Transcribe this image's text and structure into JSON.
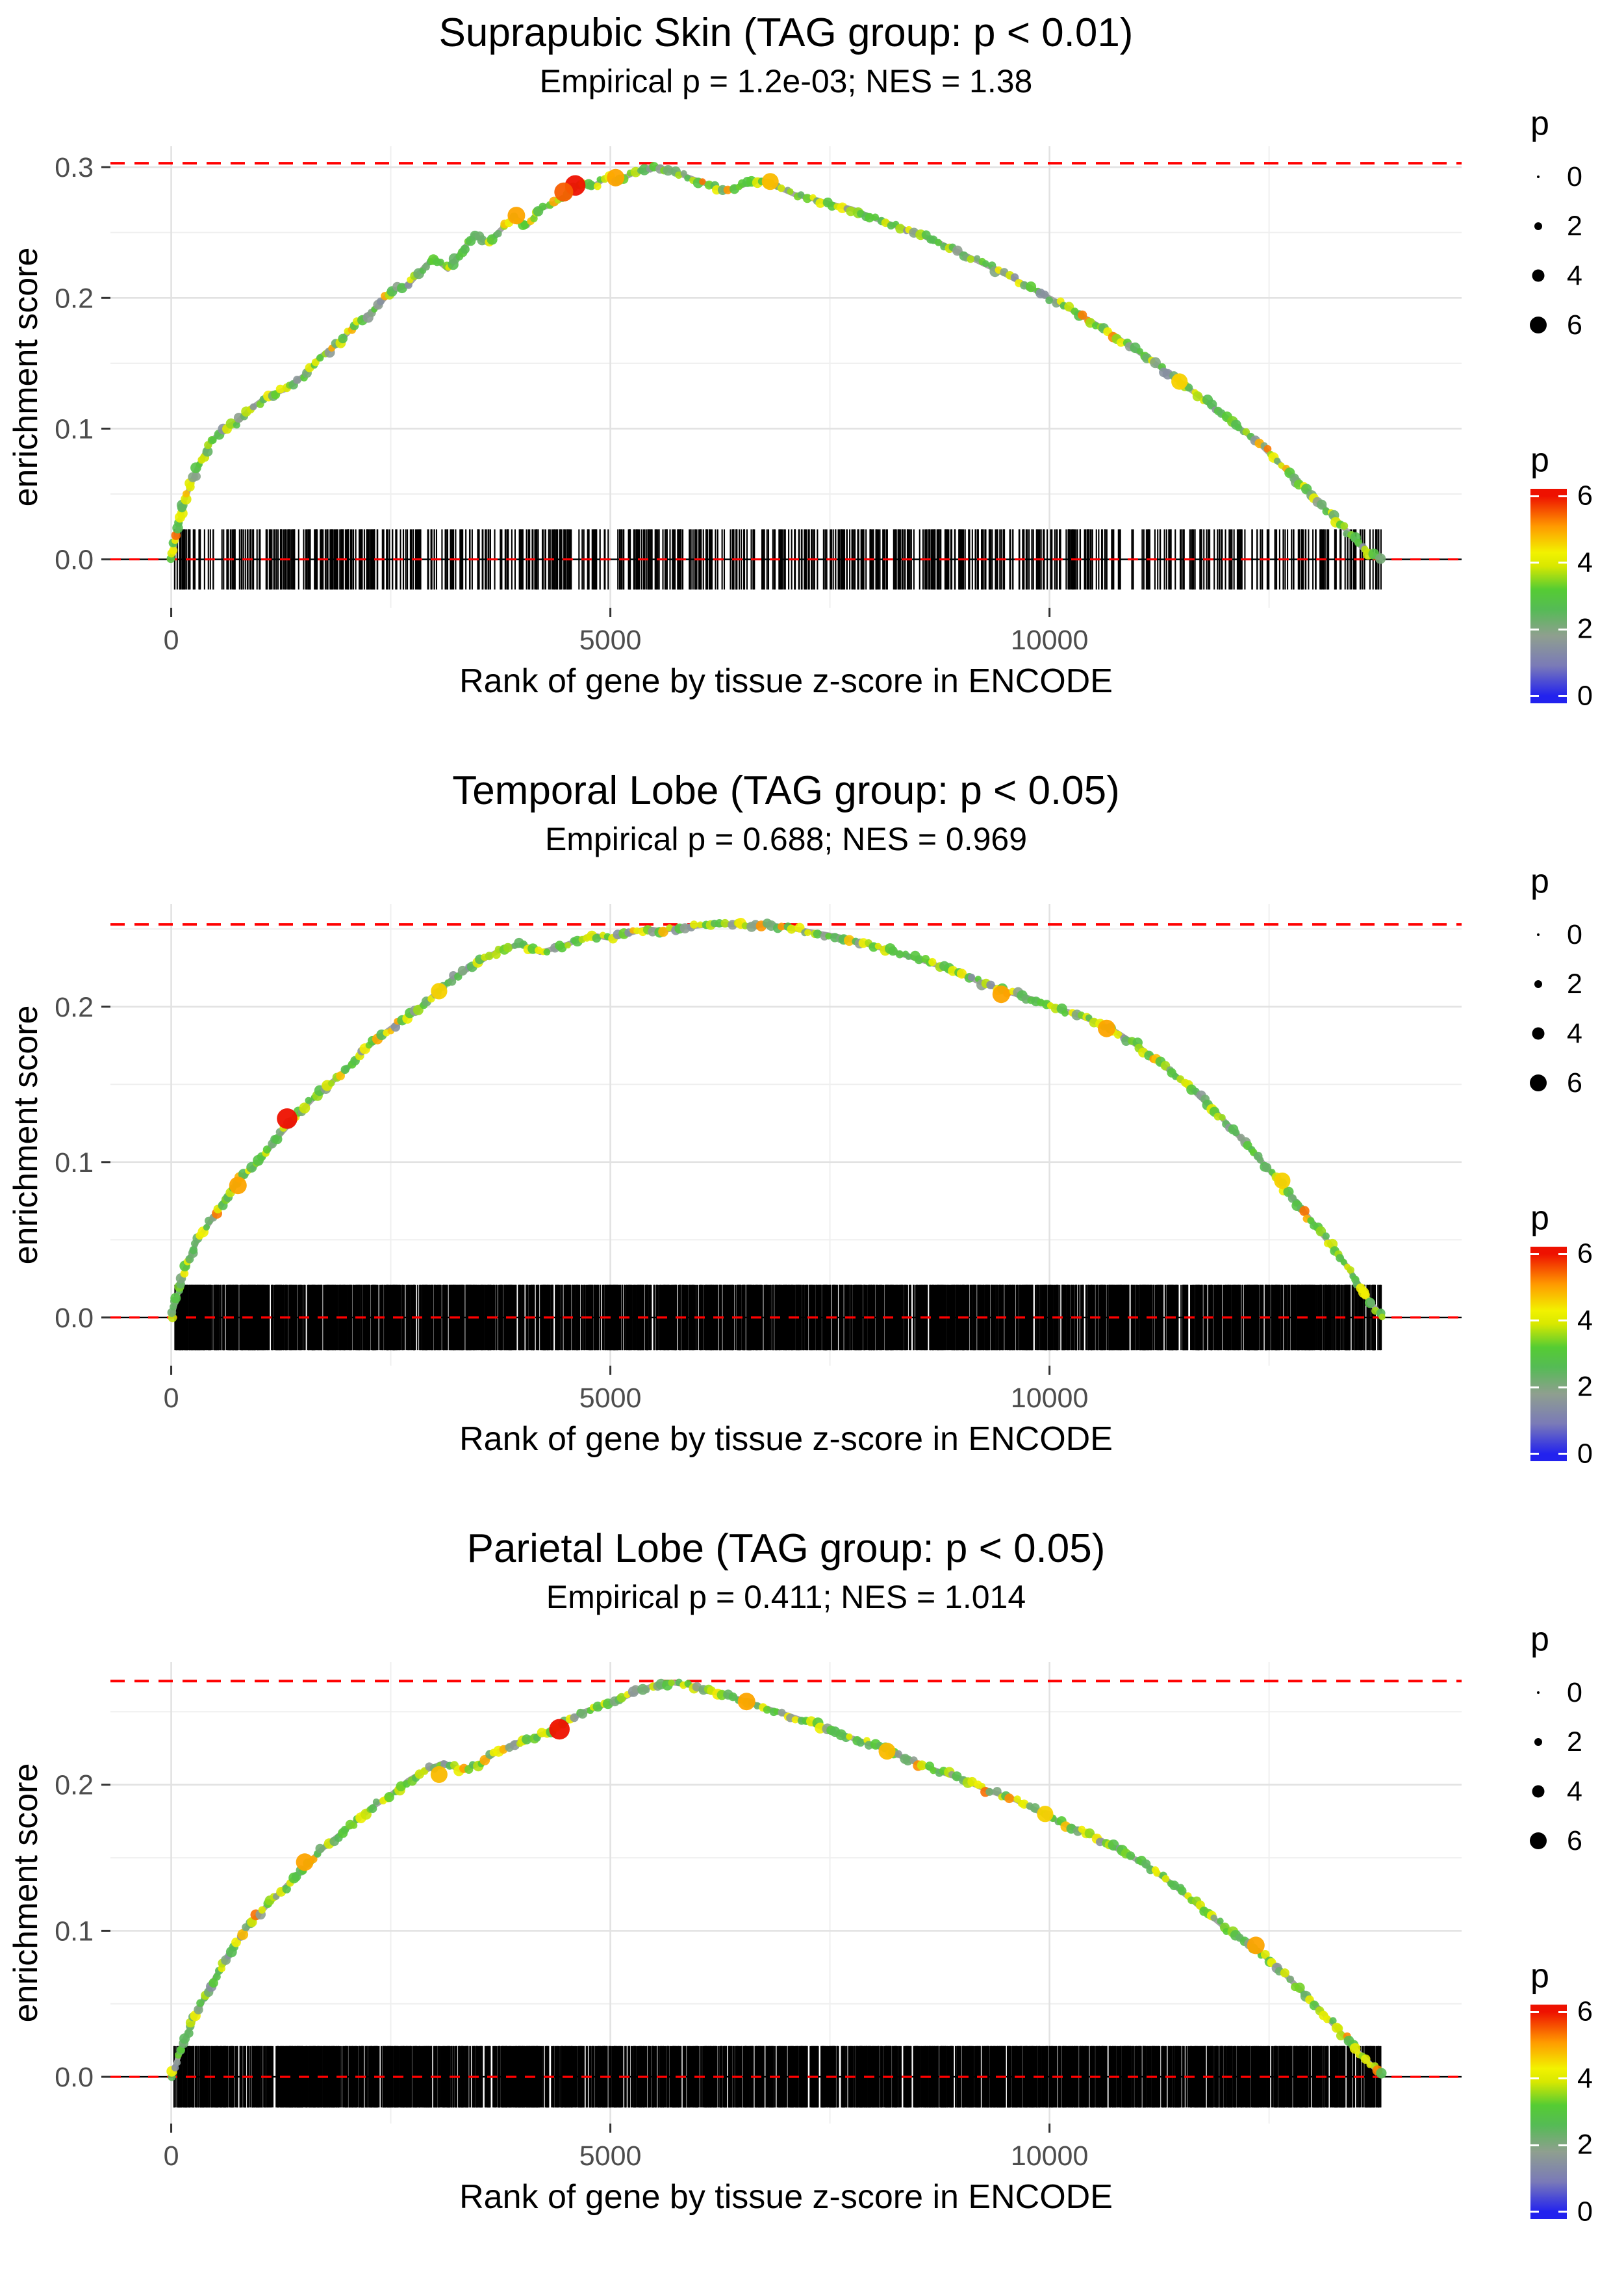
{
  "page": {
    "background": "#ffffff"
  },
  "axes": {
    "xlabel": "Rank of gene by tissue z-score in ENCODE",
    "ylabel": "enrichment score",
    "xlim": [
      -692,
      14692
    ],
    "x_ticks": [
      {
        "value": 0,
        "label": "0"
      },
      {
        "value": 5000,
        "label": "5000"
      },
      {
        "value": 10000,
        "label": "10000"
      }
    ],
    "x_minor": [
      2500,
      7500,
      12500
    ],
    "grid_major_color": "#e2e2e2",
    "grid_minor_color": "#efefef",
    "tick_color": "#333333",
    "tick_label_color": "#4d4d4d"
  },
  "legends": {
    "size": {
      "title": "p",
      "items": [
        {
          "label": "0",
          "radius": 2
        },
        {
          "label": "2",
          "radius": 6
        },
        {
          "label": "4",
          "radius": 9.5
        },
        {
          "label": "6",
          "radius": 13
        }
      ]
    },
    "color": {
      "title": "p",
      "range": [
        0,
        6
      ],
      "bar_range": [
        -0.22,
        6.22
      ],
      "ticks": [
        {
          "label": "6",
          "value": 6
        },
        {
          "label": "4",
          "value": 4
        },
        {
          "label": "2",
          "value": 2
        },
        {
          "label": "0",
          "value": 0
        }
      ],
      "stops": [
        {
          "v": 0,
          "c": "#2222ee"
        },
        {
          "v": 0.9,
          "c": "#7a7ab8"
        },
        {
          "v": 1.8,
          "c": "#8f9f8f"
        },
        {
          "v": 2.6,
          "c": "#55bb55"
        },
        {
          "v": 3.2,
          "c": "#55cc33"
        },
        {
          "v": 3.9,
          "c": "#d8e800"
        },
        {
          "v": 4.3,
          "c": "#f2f200"
        },
        {
          "v": 5.1,
          "c": "#ff9900"
        },
        {
          "v": 6,
          "c": "#ee1100"
        }
      ]
    }
  },
  "style": {
    "dashed_line_color": "#ff0000",
    "curve_base_color": "#a3a3a3",
    "rug_color": "#000000"
  },
  "chart_data": [
    {
      "type": "line",
      "title": "Suprapubic Skin (TAG group: p < 0.01)",
      "subtitle": "Empirical p = 1.2e-03; NES = 1.38",
      "empirical_p": "1.2e-03",
      "nes": 1.38,
      "xlabel": "Rank of gene by tissue z-score in ENCODE",
      "ylabel": "enrichment score",
      "ylim": [
        -0.037,
        0.316
      ],
      "y_ticks": [
        {
          "value": 0.0,
          "label": "0.0"
        },
        {
          "value": 0.1,
          "label": "0.1"
        },
        {
          "value": 0.2,
          "label": "0.2"
        },
        {
          "value": 0.3,
          "label": "0.3"
        }
      ],
      "y_minor": [
        0.05,
        0.15,
        0.25
      ],
      "max_es_line": 0.303,
      "zero_line": 0.0,
      "curve": {
        "x": [
          0,
          150,
          300,
          450,
          600,
          750,
          900,
          1100,
          1300,
          1500,
          1700,
          1900,
          2100,
          2300,
          2500,
          2700,
          2900,
          3000,
          3150,
          3300,
          3450,
          3600,
          3750,
          3900,
          4050,
          4200,
          4350,
          4500,
          4650,
          4800,
          4950,
          5100,
          5250,
          5400,
          5550,
          5700,
          5900,
          6100,
          6300,
          6500,
          6700,
          6900,
          7100,
          7300,
          7500,
          7750,
          8000,
          8250,
          8500,
          8750,
          9000,
          9250,
          9500,
          9750,
          10000,
          10300,
          10600,
          10900,
          11200,
          11500,
          11800,
          12100,
          12400,
          12700,
          13000,
          13300,
          13600,
          13800
        ],
        "es": [
          0.0,
          0.045,
          0.07,
          0.09,
          0.1,
          0.105,
          0.115,
          0.125,
          0.13,
          0.14,
          0.155,
          0.165,
          0.18,
          0.19,
          0.205,
          0.21,
          0.225,
          0.23,
          0.222,
          0.235,
          0.248,
          0.242,
          0.252,
          0.262,
          0.255,
          0.268,
          0.272,
          0.278,
          0.288,
          0.285,
          0.292,
          0.29,
          0.295,
          0.298,
          0.3,
          0.297,
          0.292,
          0.287,
          0.282,
          0.286,
          0.29,
          0.285,
          0.279,
          0.276,
          0.272,
          0.268,
          0.261,
          0.255,
          0.249,
          0.242,
          0.234,
          0.226,
          0.218,
          0.209,
          0.2,
          0.189,
          0.177,
          0.164,
          0.15,
          0.135,
          0.12,
          0.104,
          0.088,
          0.068,
          0.048,
          0.028,
          0.006,
          0.0
        ]
      },
      "highlights": [
        {
          "x": 4600,
          "es": 0.286,
          "p": 6
        },
        {
          "x": 4470,
          "es": 0.281,
          "p": 5.5
        },
        {
          "x": 3930,
          "es": 0.263,
          "p": 5
        },
        {
          "x": 5060,
          "es": 0.292,
          "p": 5
        },
        {
          "x": 6820,
          "es": 0.289,
          "p": 4.8
        },
        {
          "x": 11480,
          "es": 0.136,
          "p": 4.6
        }
      ],
      "rug": {
        "n": 800,
        "xmin": 30,
        "xmax": 13780,
        "seed": 11,
        "half_height_es": 0.023
      }
    },
    {
      "type": "line",
      "title": "Temporal Lobe (TAG group: p < 0.05)",
      "subtitle": "Empirical p = 0.688; NES = 0.969",
      "empirical_p": "0.688",
      "nes": 0.969,
      "xlabel": "Rank of gene by tissue z-score in ENCODE",
      "ylabel": "enrichment score",
      "ylim": [
        -0.031,
        0.266
      ],
      "y_ticks": [
        {
          "value": 0.0,
          "label": "0.0"
        },
        {
          "value": 0.1,
          "label": "0.1"
        },
        {
          "value": 0.2,
          "label": "0.2"
        }
      ],
      "y_minor": [
        0.05,
        0.15,
        0.25
      ],
      "max_es_line": 0.253,
      "zero_line": 0.0,
      "curve": {
        "x": [
          0,
          150,
          300,
          450,
          600,
          800,
          1000,
          1200,
          1400,
          1600,
          1800,
          2000,
          2200,
          2400,
          2600,
          2800,
          3000,
          3200,
          3400,
          3600,
          3800,
          4000,
          4200,
          4400,
          4600,
          4800,
          5000,
          5200,
          5400,
          5600,
          5800,
          6000,
          6200,
          6400,
          6600,
          6800,
          7000,
          7200,
          7400,
          7600,
          7800,
          8000,
          8300,
          8600,
          8900,
          9200,
          9500,
          9800,
          10100,
          10400,
          10700,
          11000,
          11300,
          11600,
          11900,
          12200,
          12500,
          12800,
          13100,
          13400,
          13650,
          13800
        ],
        "es": [
          0.0,
          0.03,
          0.05,
          0.062,
          0.075,
          0.09,
          0.1,
          0.115,
          0.128,
          0.14,
          0.15,
          0.16,
          0.172,
          0.182,
          0.19,
          0.198,
          0.208,
          0.218,
          0.225,
          0.232,
          0.238,
          0.24,
          0.235,
          0.238,
          0.242,
          0.246,
          0.244,
          0.247,
          0.25,
          0.249,
          0.251,
          0.252,
          0.253,
          0.253,
          0.252,
          0.253,
          0.251,
          0.249,
          0.247,
          0.245,
          0.242,
          0.239,
          0.234,
          0.229,
          0.223,
          0.216,
          0.21,
          0.205,
          0.199,
          0.193,
          0.186,
          0.175,
          0.162,
          0.148,
          0.132,
          0.114,
          0.095,
          0.075,
          0.054,
          0.032,
          0.01,
          0.0
        ]
      },
      "highlights": [
        {
          "x": 1320,
          "es": 0.128,
          "p": 6
        },
        {
          "x": 760,
          "es": 0.085,
          "p": 5
        },
        {
          "x": 9450,
          "es": 0.208,
          "p": 5
        },
        {
          "x": 10650,
          "es": 0.186,
          "p": 5
        },
        {
          "x": 3050,
          "es": 0.21,
          "p": 4.6
        },
        {
          "x": 12650,
          "es": 0.088,
          "p": 4.6
        }
      ],
      "rug": {
        "n": 2600,
        "xmin": 30,
        "xmax": 13780,
        "seed": 23,
        "half_height_es": 0.021
      }
    },
    {
      "type": "line",
      "title": "Parietal Lobe (TAG group: p < 0.05)",
      "subtitle": "Empirical p = 0.411; NES = 1.014",
      "empirical_p": "0.411",
      "nes": 1.014,
      "xlabel": "Rank of gene by tissue z-score in ENCODE",
      "ylabel": "enrichment score",
      "ylim": [
        -0.032,
        0.284
      ],
      "y_ticks": [
        {
          "value": 0.0,
          "label": "0.0"
        },
        {
          "value": 0.1,
          "label": "0.1"
        },
        {
          "value": 0.2,
          "label": "0.2"
        }
      ],
      "y_minor": [
        0.05,
        0.15,
        0.25
      ],
      "max_es_line": 0.271,
      "zero_line": 0.0,
      "curve": {
        "x": [
          0,
          150,
          300,
          500,
          700,
          900,
          1100,
          1300,
          1500,
          1700,
          1900,
          2100,
          2300,
          2500,
          2700,
          2900,
          3100,
          3300,
          3500,
          3700,
          3900,
          4100,
          4300,
          4500,
          4700,
          4900,
          5100,
          5300,
          5500,
          5700,
          5900,
          6100,
          6300,
          6500,
          6700,
          6900,
          7100,
          7300,
          7500,
          7800,
          8100,
          8400,
          8700,
          9000,
          9300,
          9600,
          9900,
          10200,
          10500,
          10800,
          11100,
          11400,
          11700,
          12000,
          12300,
          12600,
          12900,
          13200,
          13500,
          13800
        ],
        "es": [
          0.0,
          0.025,
          0.045,
          0.068,
          0.088,
          0.105,
          0.118,
          0.13,
          0.142,
          0.155,
          0.165,
          0.175,
          0.185,
          0.193,
          0.203,
          0.21,
          0.215,
          0.21,
          0.214,
          0.222,
          0.228,
          0.232,
          0.236,
          0.243,
          0.25,
          0.254,
          0.258,
          0.264,
          0.268,
          0.27,
          0.268,
          0.264,
          0.262,
          0.258,
          0.254,
          0.25,
          0.246,
          0.242,
          0.237,
          0.231,
          0.225,
          0.217,
          0.21,
          0.204,
          0.196,
          0.19,
          0.181,
          0.172,
          0.165,
          0.155,
          0.145,
          0.132,
          0.117,
          0.102,
          0.09,
          0.075,
          0.057,
          0.038,
          0.018,
          0.0
        ]
      },
      "highlights": [
        {
          "x": 4420,
          "es": 0.238,
          "p": 6
        },
        {
          "x": 1520,
          "es": 0.147,
          "p": 5
        },
        {
          "x": 3050,
          "es": 0.207,
          "p": 4.8
        },
        {
          "x": 6550,
          "es": 0.257,
          "p": 5
        },
        {
          "x": 8150,
          "es": 0.223,
          "p": 4.8
        },
        {
          "x": 9950,
          "es": 0.18,
          "p": 4.6
        },
        {
          "x": 12350,
          "es": 0.09,
          "p": 5
        }
      ],
      "rug": {
        "n": 2600,
        "xmin": 30,
        "xmax": 13780,
        "seed": 47,
        "half_height_es": 0.021
      }
    }
  ]
}
